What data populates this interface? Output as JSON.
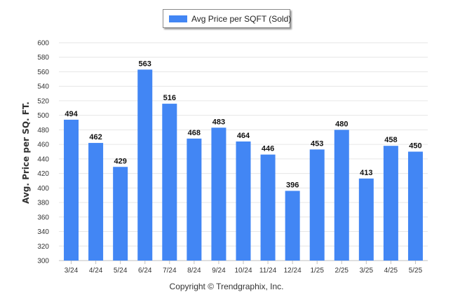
{
  "chart_data": {
    "type": "bar",
    "title": "",
    "xlabel": "",
    "ylabel": "Avg. Price per SQ. FT.",
    "ylim": [
      300,
      600
    ],
    "yticks": [
      300,
      320,
      340,
      360,
      380,
      400,
      420,
      440,
      460,
      480,
      500,
      520,
      540,
      560,
      580,
      600
    ],
    "grid": true,
    "legend_position": "top-center",
    "categories": [
      "3/24",
      "4/24",
      "5/24",
      "6/24",
      "7/24",
      "8/24",
      "9/24",
      "10/24",
      "11/24",
      "12/24",
      "1/25",
      "2/25",
      "3/25",
      "4/25",
      "5/25"
    ],
    "series": [
      {
        "name": "Avg Price per SQFT (Sold)",
        "color": "#4286f4",
        "values": [
          494,
          462,
          429,
          563,
          516,
          468,
          483,
          464,
          446,
          396,
          453,
          480,
          413,
          458,
          450
        ]
      }
    ]
  },
  "footer": {
    "copyright": "Copyright © Trendgraphix, Inc."
  }
}
